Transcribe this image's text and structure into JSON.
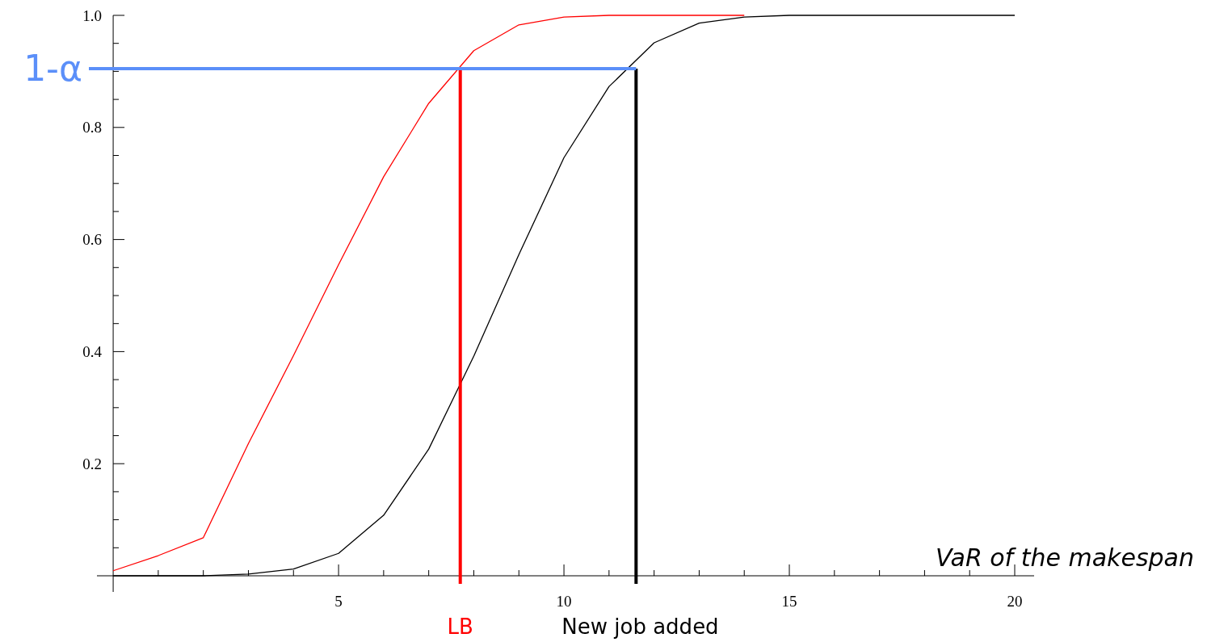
{
  "chart_data": {
    "type": "line",
    "xlabel": "VaR of the makespan",
    "x": [
      0,
      1,
      2,
      3,
      4,
      5,
      6,
      7,
      8,
      9,
      10,
      11,
      12,
      13,
      14,
      15,
      16,
      17,
      18,
      19,
      20
    ],
    "series": [
      {
        "color": "#ff0000",
        "values": [
          0.009,
          0.036,
          0.068,
          0.236,
          0.393,
          0.555,
          0.712,
          0.843,
          0.937,
          0.983,
          0.997,
          1,
          1,
          1,
          1,
          null,
          null,
          null,
          null,
          null,
          null
        ]
      },
      {
        "color": "#000000",
        "values": [
          0,
          0,
          0,
          0.003,
          0.012,
          0.04,
          0.108,
          0.226,
          0.392,
          0.573,
          0.746,
          0.873,
          0.951,
          0.986,
          0.997,
          1,
          1,
          1,
          1,
          1,
          1
        ]
      }
    ],
    "xlim": [
      -0.36,
      20.43
    ],
    "ylim": [
      0,
      1
    ],
    "xticks": [
      {
        "value": 1,
        "label": null
      },
      {
        "value": 2,
        "label": null
      },
      {
        "value": 3,
        "label": null
      },
      {
        "value": 4,
        "label": null
      },
      5,
      {
        "value": 6,
        "label": null
      },
      {
        "value": 7,
        "label": null
      },
      {
        "value": 8,
        "label": null
      },
      {
        "value": 9,
        "label": null
      },
      10,
      {
        "value": 11,
        "label": null
      },
      {
        "value": 12,
        "label": null
      },
      {
        "value": 13,
        "label": null
      },
      {
        "value": 14,
        "label": null
      },
      15,
      {
        "value": 16,
        "label": null
      },
      {
        "value": 17,
        "label": null
      },
      {
        "value": 18,
        "label": null
      },
      {
        "value": 19,
        "label": null
      },
      20
    ],
    "yticks": [
      {
        "value": 0.05,
        "label": null
      },
      {
        "value": 0.1,
        "label": null
      },
      {
        "value": 0.15,
        "label": null
      },
      0.2,
      {
        "value": 0.25,
        "label": null
      },
      {
        "value": 0.3,
        "label": null
      },
      {
        "value": 0.35,
        "label": null
      },
      0.4,
      {
        "value": 0.45,
        "label": null
      },
      {
        "value": 0.5,
        "label": null
      },
      {
        "value": 0.55,
        "label": null
      },
      0.6,
      {
        "value": 0.65,
        "label": null
      },
      {
        "value": 0.7,
        "label": null
      },
      {
        "value": 0.75,
        "label": null
      },
      0.8,
      {
        "value": 0.85,
        "label": null
      },
      {
        "value": 0.9,
        "label": null
      },
      {
        "value": 0.95,
        "label": null
      },
      {
        "value": 1,
        "label": "1.0"
      }
    ],
    "ref_lines": [
      {
        "axis": "y",
        "value": 0.905,
        "label": "1-α",
        "color": "#5b8ff9"
      },
      {
        "axis": "x",
        "value": 7.7,
        "label": "LB",
        "color": "#ff0000"
      },
      {
        "axis": "x",
        "value": 11.6,
        "label": "New job added",
        "color": "#000000"
      }
    ],
    "grid": false,
    "marker": "none",
    "line_style": "solid"
  }
}
